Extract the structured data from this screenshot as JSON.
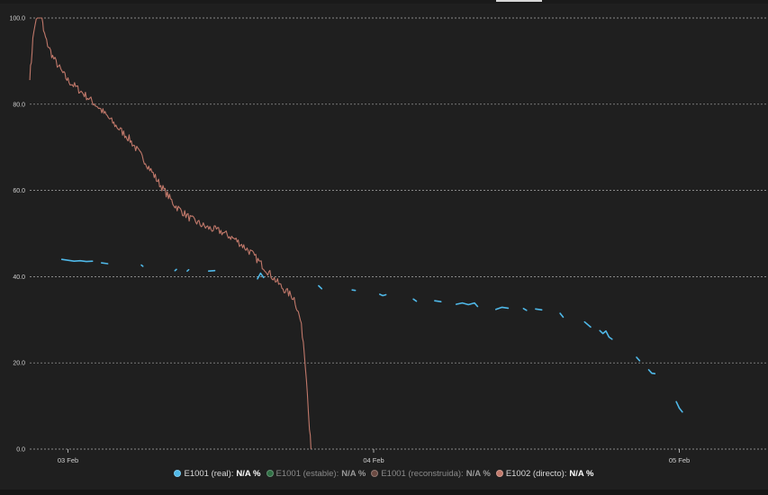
{
  "colors": {
    "background": "#1f1f1f",
    "grid": "#cfcfcf",
    "series_real": "#4fb8e8",
    "series_stable": "#2f6f44",
    "series_reconstructed": "#6b4a42",
    "series_direct": "#c0786a"
  },
  "chart_data": {
    "type": "line",
    "title": "",
    "xlabel": "",
    "ylabel": "",
    "ylim": [
      0,
      100
    ],
    "xlim": [
      -0.07,
      2.2
    ],
    "x_unit": "days from 03 Feb 00:00",
    "y_ticks": [
      "0.0",
      "20.0",
      "40.0",
      "60.0",
      "80.0",
      "100.0"
    ],
    "x_ticks": [
      {
        "label": "03 Feb",
        "value": 0
      },
      {
        "label": "04 Feb",
        "value": 1
      },
      {
        "label": "05 Feb",
        "value": 2
      }
    ],
    "grid": "horizontal-dashed",
    "legend_position": "bottom",
    "series": [
      {
        "name": "E1001 (real)",
        "color": "#4fb8e8",
        "segments": [
          [
            [
              -0.02,
              44.0
            ],
            [
              0.0,
              43.8
            ],
            [
              0.02,
              43.6
            ],
            [
              0.04,
              43.7
            ],
            [
              0.06,
              43.5
            ],
            [
              0.08,
              43.6
            ]
          ],
          [
            [
              0.11,
              43.2
            ],
            [
              0.13,
              43.0
            ]
          ],
          [
            [
              0.24,
              42.7
            ],
            [
              0.245,
              42.4
            ]
          ],
          [
            [
              0.35,
              41.4
            ],
            [
              0.355,
              41.7
            ]
          ],
          [
            [
              0.39,
              41.3
            ],
            [
              0.395,
              41.6
            ]
          ],
          [
            [
              0.46,
              41.3
            ],
            [
              0.48,
              41.4
            ]
          ],
          [
            [
              0.62,
              39.5
            ],
            [
              0.63,
              40.8
            ],
            [
              0.64,
              39.8
            ]
          ],
          [
            [
              0.82,
              37.9
            ],
            [
              0.83,
              37.2
            ]
          ],
          [
            [
              0.93,
              36.9
            ],
            [
              0.94,
              36.8
            ]
          ],
          [
            [
              1.02,
              35.9
            ],
            [
              1.03,
              35.6
            ],
            [
              1.04,
              35.8
            ]
          ],
          [
            [
              1.13,
              34.8
            ],
            [
              1.14,
              34.3
            ]
          ],
          [
            [
              1.2,
              34.4
            ],
            [
              1.22,
              34.2
            ]
          ],
          [
            [
              1.27,
              33.6
            ],
            [
              1.29,
              33.9
            ],
            [
              1.31,
              33.5
            ],
            [
              1.33,
              33.9
            ],
            [
              1.34,
              33.1
            ]
          ],
          [
            [
              1.4,
              32.4
            ],
            [
              1.42,
              32.9
            ],
            [
              1.44,
              32.7
            ]
          ],
          [
            [
              1.49,
              32.6
            ],
            [
              1.5,
              32.2
            ]
          ],
          [
            [
              1.53,
              32.5
            ],
            [
              1.55,
              32.3
            ]
          ],
          [
            [
              1.61,
              31.5
            ],
            [
              1.62,
              30.6
            ]
          ],
          [
            [
              1.69,
              29.5
            ],
            [
              1.71,
              28.3
            ]
          ],
          [
            [
              1.74,
              27.5
            ],
            [
              1.75,
              26.8
            ],
            [
              1.76,
              27.4
            ],
            [
              1.77,
              26.0
            ],
            [
              1.78,
              25.5
            ]
          ],
          [
            [
              1.86,
              21.3
            ],
            [
              1.87,
              20.5
            ]
          ],
          [
            [
              1.9,
              18.4
            ],
            [
              1.91,
              17.6
            ],
            [
              1.92,
              17.5
            ]
          ],
          [
            [
              1.99,
              11.0
            ],
            [
              2.0,
              9.5
            ],
            [
              2.01,
              8.6
            ]
          ]
        ]
      },
      {
        "name": "E1002 (directo)",
        "color": "#c0786a",
        "points": [
          [
            -0.125,
            86.5
          ],
          [
            -0.12,
            90
          ],
          [
            -0.115,
            95
          ],
          [
            -0.108,
            98.5
          ],
          [
            -0.1,
            100
          ],
          [
            -0.09,
            100
          ],
          [
            -0.085,
            100
          ],
          [
            -0.08,
            97
          ],
          [
            -0.07,
            94.5
          ],
          [
            -0.05,
            91
          ],
          [
            -0.02,
            87.5
          ],
          [
            0.0,
            85.5
          ],
          [
            0.05,
            82.5
          ],
          [
            0.1,
            79.3
          ],
          [
            0.15,
            75.5
          ],
          [
            0.2,
            72
          ],
          [
            0.25,
            67
          ],
          [
            0.3,
            61.5
          ],
          [
            0.35,
            56.5
          ],
          [
            0.4,
            53.5
          ],
          [
            0.45,
            51.5
          ],
          [
            0.5,
            50.5
          ],
          [
            0.55,
            48.5
          ],
          [
            0.6,
            45.5
          ],
          [
            0.65,
            41.5
          ],
          [
            0.7,
            37.5
          ],
          [
            0.74,
            35.0
          ],
          [
            0.76,
            30
          ],
          [
            0.77,
            25
          ],
          [
            0.78,
            17
          ],
          [
            0.79,
            5
          ],
          [
            0.795,
            0
          ]
        ],
        "noisy": true
      }
    ]
  },
  "legend": {
    "items": [
      {
        "key": "real",
        "name": "E1001 (real):",
        "value": "N/A %",
        "color": "#4fb8e8"
      },
      {
        "key": "stable",
        "name": "E1001 (estable):",
        "value": "N/A %",
        "color": "#2f6f44"
      },
      {
        "key": "reconstructed",
        "name": "E1001 (reconstruida):",
        "value": "N/A %",
        "color": "#6b4a42"
      },
      {
        "key": "direct",
        "name": "E1002 (directo):",
        "value": "N/A %",
        "color": "#c0786a"
      }
    ]
  }
}
